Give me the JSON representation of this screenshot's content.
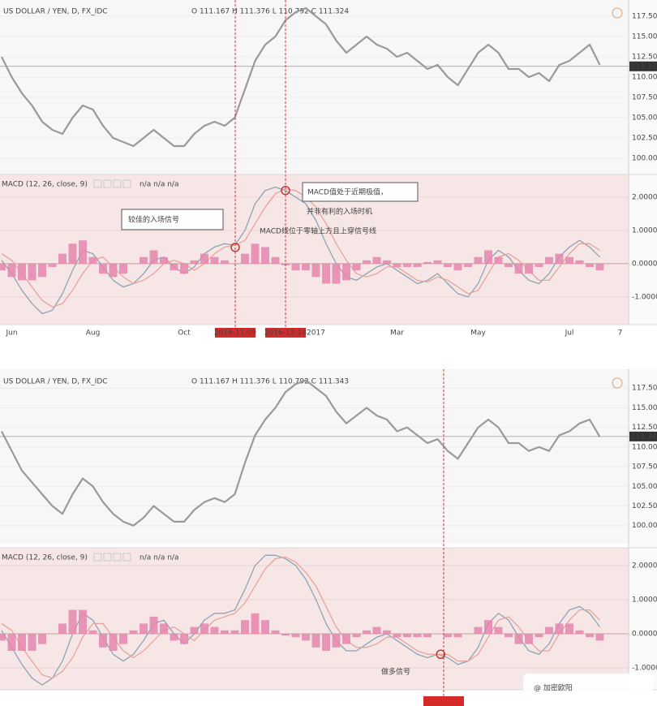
{
  "chart_data": [
    {
      "type": "price-macd",
      "title": "US DOLLAR / YEN, D, FX_IDC",
      "subtitle": "O 111.167 H 111.376 L 110.792 C 111.324",
      "indicator": "MACD (12, 26, close, 9)",
      "indicator_values": "n/a n/a n/a",
      "categories": [
        null,
        "Jun",
        null,
        null,
        null,
        null,
        null,
        null,
        null,
        "Aug",
        null,
        null,
        null,
        null,
        null,
        null,
        null,
        null,
        "Oct",
        null,
        null,
        null,
        null,
        null,
        null,
        null,
        null,
        null,
        null,
        null,
        null,
        "2017",
        null,
        null,
        null,
        null,
        null,
        null,
        null,
        "Mar",
        null,
        null,
        null,
        null,
        null,
        null,
        null,
        "May",
        null,
        null,
        null,
        null,
        null,
        null,
        null,
        null,
        "Jul",
        null,
        null,
        null,
        null,
        "7"
      ],
      "series": [
        {
          "color": "#9a9a9a",
          "values": [
            112.5,
            110,
            108,
            106.5,
            104.5,
            103.5,
            103,
            105,
            106.5,
            106,
            104,
            102.5,
            102,
            101.5,
            102.5,
            103.5,
            102.5,
            101.5,
            101.5,
            103,
            104,
            104.5,
            104,
            105,
            108.5,
            112,
            114,
            115,
            117,
            118,
            118.5,
            117.5,
            116.5,
            114.5,
            113,
            114,
            115,
            114,
            113.5,
            112.5,
            113,
            112,
            111,
            111.5,
            110,
            109,
            111,
            113,
            114,
            113,
            111,
            111,
            110,
            110.5,
            109.5,
            111.5,
            112,
            113,
            114,
            111.5,
            null,
            null
          ]
        },
        {
          "color": "#8ea4b4",
          "axis": "y2",
          "values": [
            0.1,
            -0.3,
            -0.8,
            -1.2,
            -1.5,
            -1.4,
            -0.9,
            -0.2,
            0.4,
            0.3,
            -0.1,
            -0.5,
            -0.7,
            -0.6,
            -0.3,
            0.1,
            0.2,
            -0.1,
            -0.3,
            -0.1,
            0.3,
            0.5,
            0.6,
            0.55,
            1.0,
            1.8,
            2.2,
            2.3,
            2.2,
            2.0,
            1.8,
            1.3,
            0.6,
            0.0,
            -0.4,
            -0.5,
            -0.3,
            -0.1,
            0.0,
            -0.2,
            -0.4,
            -0.6,
            -0.5,
            -0.3,
            -0.6,
            -0.9,
            -1.0,
            -0.6,
            0.1,
            0.4,
            0.2,
            -0.2,
            -0.5,
            -0.6,
            -0.3,
            0.2,
            0.5,
            0.7,
            0.5,
            0.2,
            null,
            null
          ]
        },
        {
          "color": "#e8a49c",
          "axis": "y2",
          "values": [
            0.3,
            0.1,
            -0.3,
            -0.7,
            -1.1,
            -1.3,
            -1.2,
            -0.8,
            -0.3,
            0.1,
            0.2,
            -0.1,
            -0.4,
            -0.6,
            -0.5,
            -0.3,
            0.0,
            0.1,
            0.0,
            -0.2,
            0.0,
            0.3,
            0.5,
            0.55,
            0.7,
            1.2,
            1.7,
            2.1,
            2.25,
            2.2,
            2.0,
            1.7,
            1.2,
            0.6,
            0.1,
            -0.3,
            -0.4,
            -0.3,
            -0.1,
            -0.1,
            -0.3,
            -0.5,
            -0.55,
            -0.4,
            -0.5,
            -0.7,
            -0.9,
            -0.8,
            -0.3,
            0.2,
            0.3,
            0.1,
            -0.2,
            -0.5,
            -0.5,
            -0.1,
            0.3,
            0.6,
            0.6,
            0.4,
            null,
            null
          ]
        },
        {
          "color": "#e585ad",
          "axis": "y2",
          "style": "histogram",
          "values": [
            -0.2,
            -0.4,
            -0.5,
            -0.5,
            -0.4,
            -0.1,
            0.3,
            0.6,
            0.7,
            0.2,
            -0.3,
            -0.4,
            -0.3,
            0.0,
            0.2,
            0.4,
            0.2,
            -0.2,
            -0.3,
            0.1,
            0.3,
            0.2,
            0.1,
            0.0,
            0.3,
            0.6,
            0.5,
            0.2,
            -0.05,
            -0.2,
            -0.2,
            -0.4,
            -0.6,
            -0.6,
            -0.5,
            -0.2,
            0.1,
            0.2,
            0.1,
            -0.1,
            -0.1,
            -0.1,
            0.05,
            0.1,
            -0.1,
            -0.2,
            -0.1,
            0.2,
            0.4,
            0.2,
            -0.1,
            -0.3,
            -0.3,
            -0.1,
            0.2,
            0.3,
            0.2,
            0.1,
            -0.1,
            -0.2,
            null,
            null
          ]
        }
      ],
      "ylim": [
        98,
        119.5
      ],
      "yticks": [
        {
          "value": 117.5,
          "label": "117.500"
        },
        {
          "value": 115,
          "label": "115.000"
        },
        {
          "value": 112.5,
          "label": "112.500"
        },
        {
          "value": 110,
          "label": "110.000"
        },
        {
          "value": 107.5,
          "label": "107.500"
        },
        {
          "value": 105,
          "label": "105.000"
        },
        {
          "value": 102.5,
          "label": "102.500"
        },
        {
          "value": 100,
          "label": "100.000"
        }
      ],
      "y2lim": [
        -1.83,
        2.68
      ],
      "y2ticks": [
        {
          "value": 2,
          "label": "2.0000"
        },
        {
          "value": 1,
          "label": "1.0000"
        },
        {
          "value": 0,
          "label": "0.0000"
        },
        {
          "value": -1,
          "label": "-1.0000"
        }
      ],
      "last_price": 111.324,
      "markers": [
        {
          "label": "2016-11-09",
          "x": 23.04
        },
        {
          "label": "2016-12-14",
          "x": 28
        }
      ],
      "annotations": [
        {
          "text": "较佳的入场信号",
          "x": 23.04,
          "y": 0.49
        },
        {
          "text": "MACD值处于近期极值，",
          "note": "并非有利的入场时机",
          "x": 28,
          "y": 2.2
        }
      ],
      "caption": "MACD线位于零轴上方且上穿信号线"
    },
    {
      "type": "price-macd",
      "title": "US DOLLAR / YEN, D, FX_IDC",
      "subtitle": "O 111.167 H 111.376 L 110.792 C 111.343",
      "indicator": "MACD (12, 26, close, 9)",
      "indicator_values": "n/a n/a n/a",
      "categories": [
        null,
        null,
        null,
        null,
        null,
        null,
        null,
        null,
        null,
        null,
        null,
        null,
        null,
        null,
        null,
        null,
        null,
        null,
        null,
        null,
        null,
        null,
        null,
        null,
        null,
        null,
        null,
        null,
        null,
        null,
        null,
        null,
        null,
        null,
        null,
        null,
        null,
        null,
        null,
        null,
        null,
        null,
        null,
        null,
        null,
        null,
        null,
        null,
        null,
        null,
        null,
        null,
        null,
        null,
        null,
        null,
        null,
        null,
        null,
        null,
        null,
        null
      ],
      "series": [
        {
          "color": "#9a9a9a",
          "values": [
            112,
            109.5,
            107,
            105.5,
            104,
            102.5,
            101.5,
            104,
            106,
            105,
            103,
            101.5,
            100.5,
            100,
            101,
            102.5,
            101.5,
            100.5,
            100.5,
            102,
            103,
            103.5,
            103,
            104,
            108,
            111.5,
            113.5,
            115,
            117,
            118,
            118.5,
            117.5,
            116.5,
            114.5,
            113,
            114,
            115,
            114,
            113.5,
            112,
            112.5,
            111.5,
            110.5,
            111,
            109.5,
            108.5,
            110.5,
            112.5,
            113.5,
            112.5,
            110.5,
            110.5,
            109.5,
            110,
            109.5,
            111.5,
            112,
            113,
            113.5,
            111.3,
            null,
            null
          ]
        },
        {
          "color": "#8ea4b4",
          "axis": "y2",
          "values": [
            0.1,
            -0.4,
            -0.9,
            -1.3,
            -1.5,
            -1.3,
            -0.8,
            0.0,
            0.6,
            0.4,
            -0.1,
            -0.6,
            -0.8,
            -0.6,
            -0.2,
            0.3,
            0.4,
            0.0,
            -0.3,
            0.0,
            0.4,
            0.6,
            0.6,
            0.7,
            1.3,
            2.0,
            2.3,
            2.3,
            2.2,
            2.0,
            1.6,
            1.0,
            0.3,
            -0.2,
            -0.5,
            -0.5,
            -0.3,
            -0.1,
            0.0,
            -0.2,
            -0.4,
            -0.6,
            -0.7,
            -0.6,
            -0.7,
            -0.9,
            -0.8,
            -0.4,
            0.3,
            0.6,
            0.4,
            -0.1,
            -0.5,
            -0.6,
            -0.3,
            0.3,
            0.7,
            0.8,
            0.6,
            0.2,
            null,
            null
          ]
        },
        {
          "color": "#e8a49c",
          "axis": "y2",
          "values": [
            0.3,
            0.1,
            -0.4,
            -0.8,
            -1.2,
            -1.3,
            -1.1,
            -0.7,
            -0.1,
            0.3,
            0.3,
            -0.1,
            -0.5,
            -0.7,
            -0.5,
            -0.2,
            0.1,
            0.2,
            0.0,
            -0.2,
            0.1,
            0.4,
            0.5,
            0.6,
            0.9,
            1.4,
            1.9,
            2.2,
            2.25,
            2.1,
            1.8,
            1.4,
            0.8,
            0.2,
            -0.2,
            -0.4,
            -0.4,
            -0.3,
            -0.1,
            -0.1,
            -0.3,
            -0.5,
            -0.6,
            -0.6,
            -0.6,
            -0.8,
            -0.8,
            -0.6,
            -0.1,
            0.4,
            0.5,
            0.2,
            -0.2,
            -0.5,
            -0.5,
            0.0,
            0.4,
            0.7,
            0.7,
            0.4,
            null,
            null
          ]
        },
        {
          "color": "#e585ad",
          "axis": "y2",
          "style": "histogram",
          "values": [
            -0.2,
            -0.5,
            -0.5,
            -0.5,
            -0.3,
            0.0,
            0.3,
            0.7,
            0.7,
            0.1,
            -0.4,
            -0.5,
            -0.3,
            0.1,
            0.3,
            0.5,
            0.3,
            -0.2,
            -0.3,
            0.2,
            0.3,
            0.2,
            0.1,
            0.1,
            0.4,
            0.6,
            0.4,
            0.1,
            -0.05,
            -0.1,
            -0.2,
            -0.4,
            -0.5,
            -0.4,
            -0.3,
            -0.1,
            0.1,
            0.2,
            0.1,
            -0.1,
            -0.1,
            -0.1,
            -0.1,
            0.0,
            -0.1,
            -0.1,
            0.0,
            0.2,
            0.4,
            0.2,
            -0.1,
            -0.3,
            -0.3,
            -0.1,
            0.2,
            0.3,
            0.3,
            0.1,
            -0.1,
            -0.2,
            null,
            null
          ]
        }
      ],
      "ylim": [
        97.7,
        119.9
      ],
      "yticks": [
        {
          "value": 117.5,
          "label": "117.500"
        },
        {
          "value": 115,
          "label": "115.000"
        },
        {
          "value": 112.5,
          "label": "112.500"
        },
        {
          "value": 110,
          "label": "110.000"
        },
        {
          "value": 107.5,
          "label": "107.500"
        },
        {
          "value": 105,
          "label": "105.000"
        },
        {
          "value": 102.5,
          "label": "102.500"
        },
        {
          "value": 100,
          "label": "100.000"
        }
      ],
      "y2lim": [
        -1.64,
        2.52
      ],
      "y2ticks": [
        {
          "value": 2,
          "label": "2.0000"
        },
        {
          "value": 1,
          "label": "1.0000"
        },
        {
          "value": 0,
          "label": "0.0000"
        },
        {
          "value": -1,
          "label": "-1.0000"
        }
      ],
      "last_price": 111.343,
      "markers": [
        {
          "x": 43.6
        }
      ],
      "annotations": [
        {
          "text": "做多信号",
          "x": 43.3,
          "y": -0.6
        }
      ]
    }
  ],
  "watermark": "@ 加密欧阳"
}
